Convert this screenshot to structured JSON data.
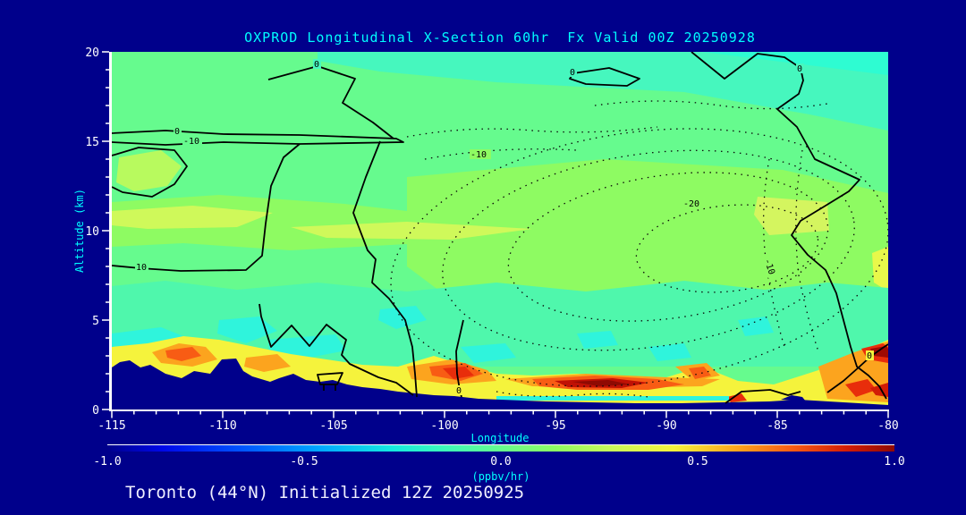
{
  "title": "OXPROD Longitudinal X-Section 60hr  Fx Valid 00Z 20250928",
  "footer": "Toronto (44°N) Initialized 12Z 20250925",
  "colors": {
    "background": "#00008B",
    "accent_text": "#00FFFF",
    "primary_text": "#FFFFFF",
    "contour_line": "#000000"
  },
  "chart_data": {
    "type": "heatmap",
    "title": "OXPROD Longitudinal X-Section 60hr  Fx Valid 00Z 20250928",
    "xlabel": "Longitude",
    "ylabel": "Altitude (km)",
    "xlim": [
      -115,
      -80
    ],
    "ylim": [
      0,
      20
    ],
    "x_tick_labels": [
      "-115",
      "-110",
      "-105",
      "-100",
      "-95",
      "-90",
      "-85",
      "-80"
    ],
    "y_tick_labels": [
      "0",
      "5",
      "10",
      "15",
      "20"
    ],
    "grid": false,
    "legend_position": "bottom-colorbar",
    "colorbar": {
      "label": "(ppbv/hr)",
      "min": -1.0,
      "max": 1.0,
      "tick_labels": [
        "-1.0",
        "-0.5",
        "0.0",
        "0.5",
        "1.0"
      ],
      "gradient": [
        "#00008B",
        "#0008E8",
        "#0053FF",
        "#00A8FF",
        "#14E8E0",
        "#3EF9B8",
        "#66FB8E",
        "#8EFB62",
        "#C8F85A",
        "#F5F33C",
        "#FCA41E",
        "#F85C14",
        "#D21C06",
        "#8F0A03"
      ]
    },
    "contour_labels": [
      "0",
      "-10",
      "0",
      "10",
      "0",
      "0",
      "0",
      "0",
      "-10",
      "-20",
      "-10"
    ],
    "features": {
      "fill_summary": "Near-zero production (green) through most of the section; turquoise band at 18-20 km; negative region (dotted contours -10 to -20) in mid/upper troposphere between about -105 and -82; positive production band (yellow/orange/red up to ~1 ppbv/hr) hugging the surface, strongest near -92 and -80; navy terrain silhouette of the Rockies on the west side",
      "terrain_profile_km": [
        [
          -115,
          2.4
        ],
        [
          -113.5,
          2.7
        ],
        [
          -112.7,
          2.4
        ],
        [
          -112,
          1.8
        ],
        [
          -111.3,
          2.1
        ],
        [
          -110.4,
          2.9
        ],
        [
          -109.6,
          2.1
        ],
        [
          -108,
          1.6
        ],
        [
          -106.5,
          1.3
        ],
        [
          -105,
          1.1
        ],
        [
          -103.5,
          0.9
        ],
        [
          -101.5,
          0.75
        ],
        [
          -99.5,
          0.55
        ],
        [
          -97.5,
          0.45
        ],
        [
          -95,
          0.4
        ],
        [
          -92.5,
          0.35
        ],
        [
          -90,
          0.4
        ],
        [
          -88,
          0.45
        ],
        [
          -85.5,
          0.4
        ],
        [
          -82.5,
          0.35
        ],
        [
          -80,
          0.25
        ]
      ]
    }
  }
}
